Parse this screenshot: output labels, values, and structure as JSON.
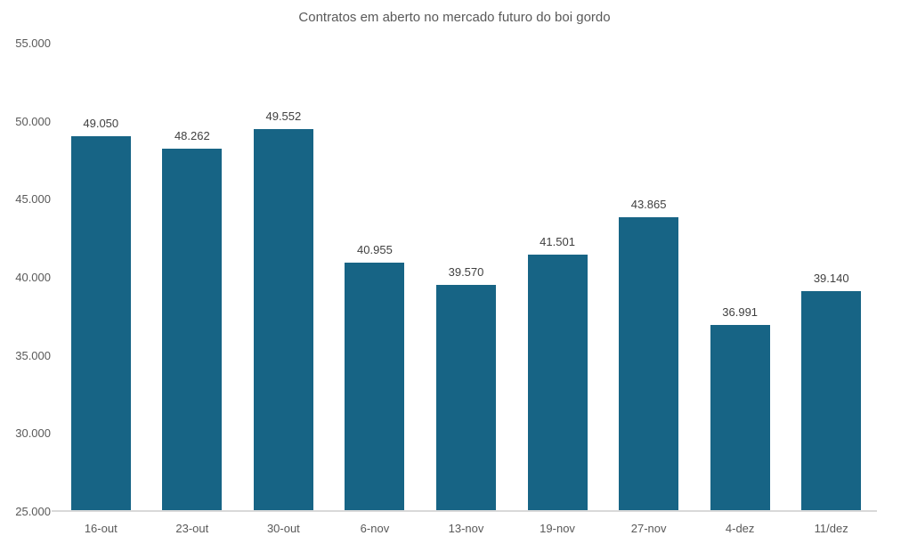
{
  "chart_data": {
    "type": "bar",
    "title": "Contratos em aberto no mercado futuro do boi gordo",
    "categories": [
      "16-out",
      "23-out",
      "30-out",
      "6-nov",
      "13-nov",
      "19-nov",
      "27-nov",
      "4-dez",
      "11/dez"
    ],
    "values": [
      49050,
      48262,
      49552,
      40955,
      39570,
      41501,
      43865,
      36991,
      39140
    ],
    "value_labels": [
      "49.050",
      "48.262",
      "49.552",
      "40.955",
      "39.570",
      "41.501",
      "43.865",
      "36.991",
      "39.140"
    ],
    "y_tick_labels": [
      "55.000",
      "50.000",
      "45.000",
      "40.000",
      "35.000",
      "30.000",
      "25.000"
    ],
    "y_tick_values": [
      55000,
      50000,
      45000,
      40000,
      35000,
      30000,
      25000
    ],
    "ylim": [
      25000,
      55000
    ],
    "xlabel": "",
    "ylabel": "",
    "grid": false,
    "legend": false,
    "bar_color": "#176485",
    "title_color": "#595959",
    "axis_label_color": "#595959",
    "data_label_color": "#404040",
    "axis_line_color": "#d9d9d9"
  }
}
